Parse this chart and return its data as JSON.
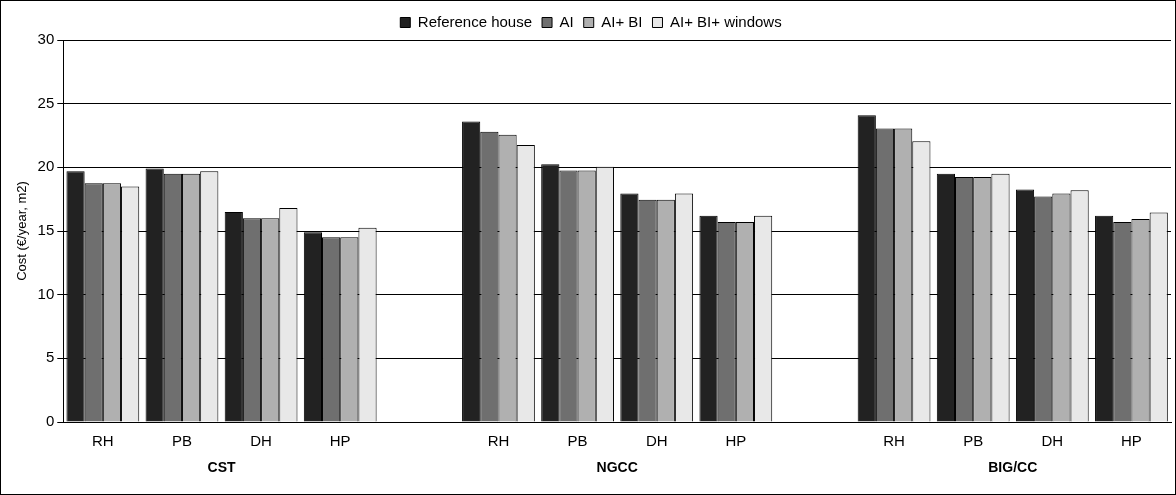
{
  "chart_data": {
    "type": "bar",
    "ylabel": "Cost (€/year, m2)",
    "categories": [
      "RH",
      "PB",
      "DH",
      "HP",
      null,
      "RH",
      "PB",
      "DH",
      "HP",
      null,
      "RH",
      "PB",
      "DH",
      "HP"
    ],
    "series": [
      {
        "name": "Reference house",
        "color": "#222222",
        "values": [
          19.7,
          19.9,
          16.5,
          14.9,
          null,
          23.6,
          20.25,
          17.95,
          16.2,
          null,
          24.1,
          19.5,
          18.25,
          16.2
        ]
      },
      {
        "name": "AI",
        "color": "#6f6f6f",
        "values": [
          18.75,
          19.5,
          16.0,
          14.5,
          null,
          22.8,
          19.75,
          17.45,
          15.7,
          null,
          23.05,
          19.25,
          17.7,
          15.7
        ]
      },
      {
        "name": "AI+ BI",
        "color": "#b0b0b0",
        "values": [
          18.75,
          19.5,
          16.0,
          14.5,
          null,
          22.55,
          19.75,
          17.45,
          15.7,
          null,
          23.05,
          19.25,
          17.95,
          15.95
        ]
      },
      {
        "name": "AI+ BI+ windows",
        "color": "#e8e8e8",
        "values": [
          18.5,
          19.7,
          16.8,
          15.25,
          null,
          21.75,
          20.05,
          17.95,
          16.2,
          null,
          22.05,
          19.5,
          18.2,
          16.45
        ]
      }
    ],
    "annotations": [
      "CST",
      "NGCC",
      "BIG/CC"
    ],
    "ylim": [
      0,
      30
    ],
    "yticks": [
      0,
      5,
      10,
      15,
      20,
      25,
      30
    ],
    "grid": "y",
    "legend": "top"
  }
}
